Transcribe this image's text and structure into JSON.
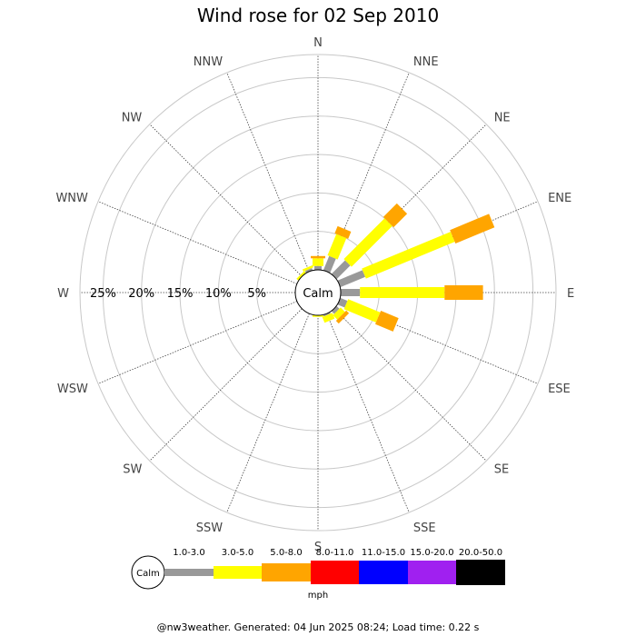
{
  "chart_data": {
    "type": "wind-rose",
    "title": "Wind rose for 02 Sep 2010",
    "directions": [
      "N",
      "NNE",
      "NE",
      "ENE",
      "E",
      "ESE",
      "SE",
      "SSE",
      "S",
      "SSW",
      "SW",
      "WSW",
      "W",
      "WNW",
      "NW",
      "NNW"
    ],
    "radial_tick_labels": [
      "5%",
      "10%",
      "15%",
      "20%",
      "25%"
    ],
    "radial_max_percent": 28,
    "calm_label": "Calm",
    "units": "mph",
    "speed_bins": [
      {
        "label": "1.0-3.0",
        "color": "#999999"
      },
      {
        "label": "3.0-5.0",
        "color": "#ffff00"
      },
      {
        "label": "5.0-8.0",
        "color": "#ffa500"
      },
      {
        "label": "8.0-11.0",
        "color": "#ff0000"
      },
      {
        "label": "11.0-15.0",
        "color": "#0000ff"
      },
      {
        "label": "15.0-20.0",
        "color": "#a020f0"
      },
      {
        "label": "20.0-50.0",
        "color": "#000000"
      }
    ],
    "series": [
      {
        "direction": "N",
        "values": [
          0.5,
          1.0,
          0.3
        ]
      },
      {
        "direction": "NNE",
        "values": [
          2.0,
          3.0,
          1.0
        ]
      },
      {
        "direction": "NE",
        "values": [
          2.5,
          7.5,
          2.5
        ]
      },
      {
        "direction": "ENE",
        "values": [
          3.5,
          12.5,
          5.5
        ]
      },
      {
        "direction": "E",
        "values": [
          2.5,
          11.0,
          5.0
        ]
      },
      {
        "direction": "ESE",
        "values": [
          1.0,
          4.5,
          2.5
        ]
      },
      {
        "direction": "SE",
        "values": [
          0.5,
          0.8,
          0.5
        ]
      },
      {
        "direction": "SSE",
        "values": [
          0.2,
          0.8,
          0.0
        ]
      },
      {
        "direction": "S",
        "values": [
          0.0,
          0.2,
          0.0
        ]
      },
      {
        "direction": "SSW",
        "values": [
          0.0,
          0.0,
          0.0
        ]
      },
      {
        "direction": "SW",
        "values": [
          0.0,
          0.0,
          0.0
        ]
      },
      {
        "direction": "WSW",
        "values": [
          0.0,
          0.0,
          0.0
        ]
      },
      {
        "direction": "W",
        "values": [
          0.0,
          0.0,
          0.0
        ]
      },
      {
        "direction": "WNW",
        "values": [
          0.0,
          0.0,
          0.0
        ]
      },
      {
        "direction": "NW",
        "values": [
          0.0,
          0.3,
          0.0
        ]
      },
      {
        "direction": "NNW",
        "values": [
          0.3,
          0.3,
          0.0
        ]
      }
    ]
  },
  "footer_text": "@nw3weather. Generated: 04 Jun 2025 08:24; Load time: 0.22 s"
}
